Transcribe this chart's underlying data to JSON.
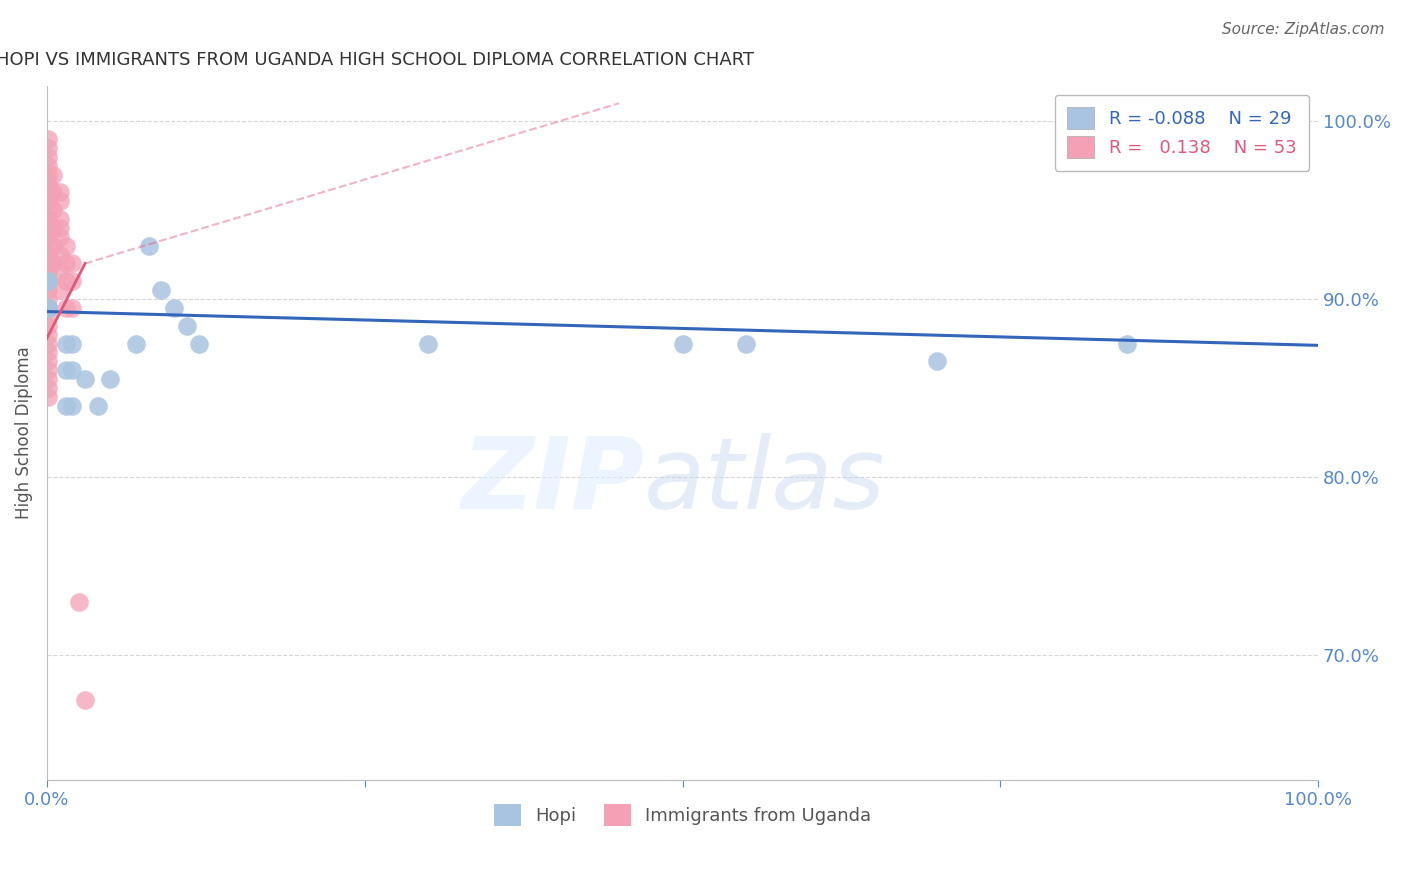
{
  "title": "HOPI VS IMMIGRANTS FROM UGANDA HIGH SCHOOL DIPLOMA CORRELATION CHART",
  "source": "Source: ZipAtlas.com",
  "ylabel": "High School Diploma",
  "legend_blue_R": "-0.088",
  "legend_blue_N": "29",
  "legend_pink_R": "0.138",
  "legend_pink_N": "53",
  "blue_color": "#a8c4e0",
  "pink_color": "#f4a0b5",
  "blue_line_color": "#3366bb",
  "pink_line_color": "#e05878",
  "watermark_zip": "ZIP",
  "watermark_atlas": "atlas",
  "hopi_x": [
    0.001,
    0.001,
    0.001,
    0.001,
    0.001,
    0.001,
    0.001,
    0.001,
    0.001,
    0.015,
    0.015,
    0.015,
    0.02,
    0.02,
    0.02,
    0.03,
    0.04,
    0.05,
    0.07,
    0.08,
    0.09,
    0.1,
    0.11,
    0.12,
    0.3,
    0.5,
    0.55,
    0.7,
    0.85
  ],
  "hopi_y": [
    0.91,
    0.91,
    0.895,
    0.895,
    0.895,
    0.895,
    0.895,
    0.895,
    0.895,
    0.875,
    0.86,
    0.84,
    0.875,
    0.86,
    0.84,
    0.855,
    0.84,
    0.855,
    0.875,
    0.93,
    0.905,
    0.895,
    0.885,
    0.875,
    0.875,
    0.875,
    0.875,
    0.865,
    0.875
  ],
  "uganda_x": [
    0.001,
    0.001,
    0.001,
    0.001,
    0.001,
    0.001,
    0.001,
    0.001,
    0.001,
    0.001,
    0.001,
    0.001,
    0.001,
    0.001,
    0.001,
    0.001,
    0.001,
    0.001,
    0.001,
    0.001,
    0.001,
    0.001,
    0.001,
    0.001,
    0.001,
    0.001,
    0.001,
    0.001,
    0.001,
    0.001,
    0.005,
    0.005,
    0.005,
    0.005,
    0.005,
    0.005,
    0.01,
    0.01,
    0.01,
    0.01,
    0.01,
    0.01,
    0.01,
    0.01,
    0.015,
    0.015,
    0.015,
    0.015,
    0.02,
    0.02,
    0.02,
    0.025,
    0.03
  ],
  "uganda_y": [
    0.99,
    0.985,
    0.98,
    0.975,
    0.97,
    0.965,
    0.96,
    0.955,
    0.95,
    0.945,
    0.94,
    0.935,
    0.93,
    0.925,
    0.92,
    0.915,
    0.91,
    0.905,
    0.9,
    0.895,
    0.89,
    0.885,
    0.88,
    0.875,
    0.87,
    0.865,
    0.86,
    0.855,
    0.85,
    0.845,
    0.97,
    0.96,
    0.95,
    0.94,
    0.93,
    0.92,
    0.96,
    0.955,
    0.945,
    0.94,
    0.935,
    0.925,
    0.915,
    0.905,
    0.93,
    0.92,
    0.91,
    0.895,
    0.92,
    0.91,
    0.895,
    0.73,
    0.675
  ],
  "xlim": [
    0,
    1.0
  ],
  "ylim": [
    0.63,
    1.02
  ],
  "yticks": [
    1.0,
    0.9,
    0.8,
    0.7
  ],
  "ytick_labels": [
    "100.0%",
    "90.0%",
    "80.0%",
    "70.0%"
  ],
  "blue_line_x0": 0.0,
  "blue_line_x1": 1.0,
  "blue_line_y0": 0.893,
  "blue_line_y1": 0.874,
  "pink_line_solid_x0": 0.0,
  "pink_line_solid_x1": 0.03,
  "pink_line_dashed_x1": 0.45,
  "pink_line_y0": 0.878,
  "pink_line_y1_solid": 0.92,
  "pink_line_y1_dashed": 1.01
}
